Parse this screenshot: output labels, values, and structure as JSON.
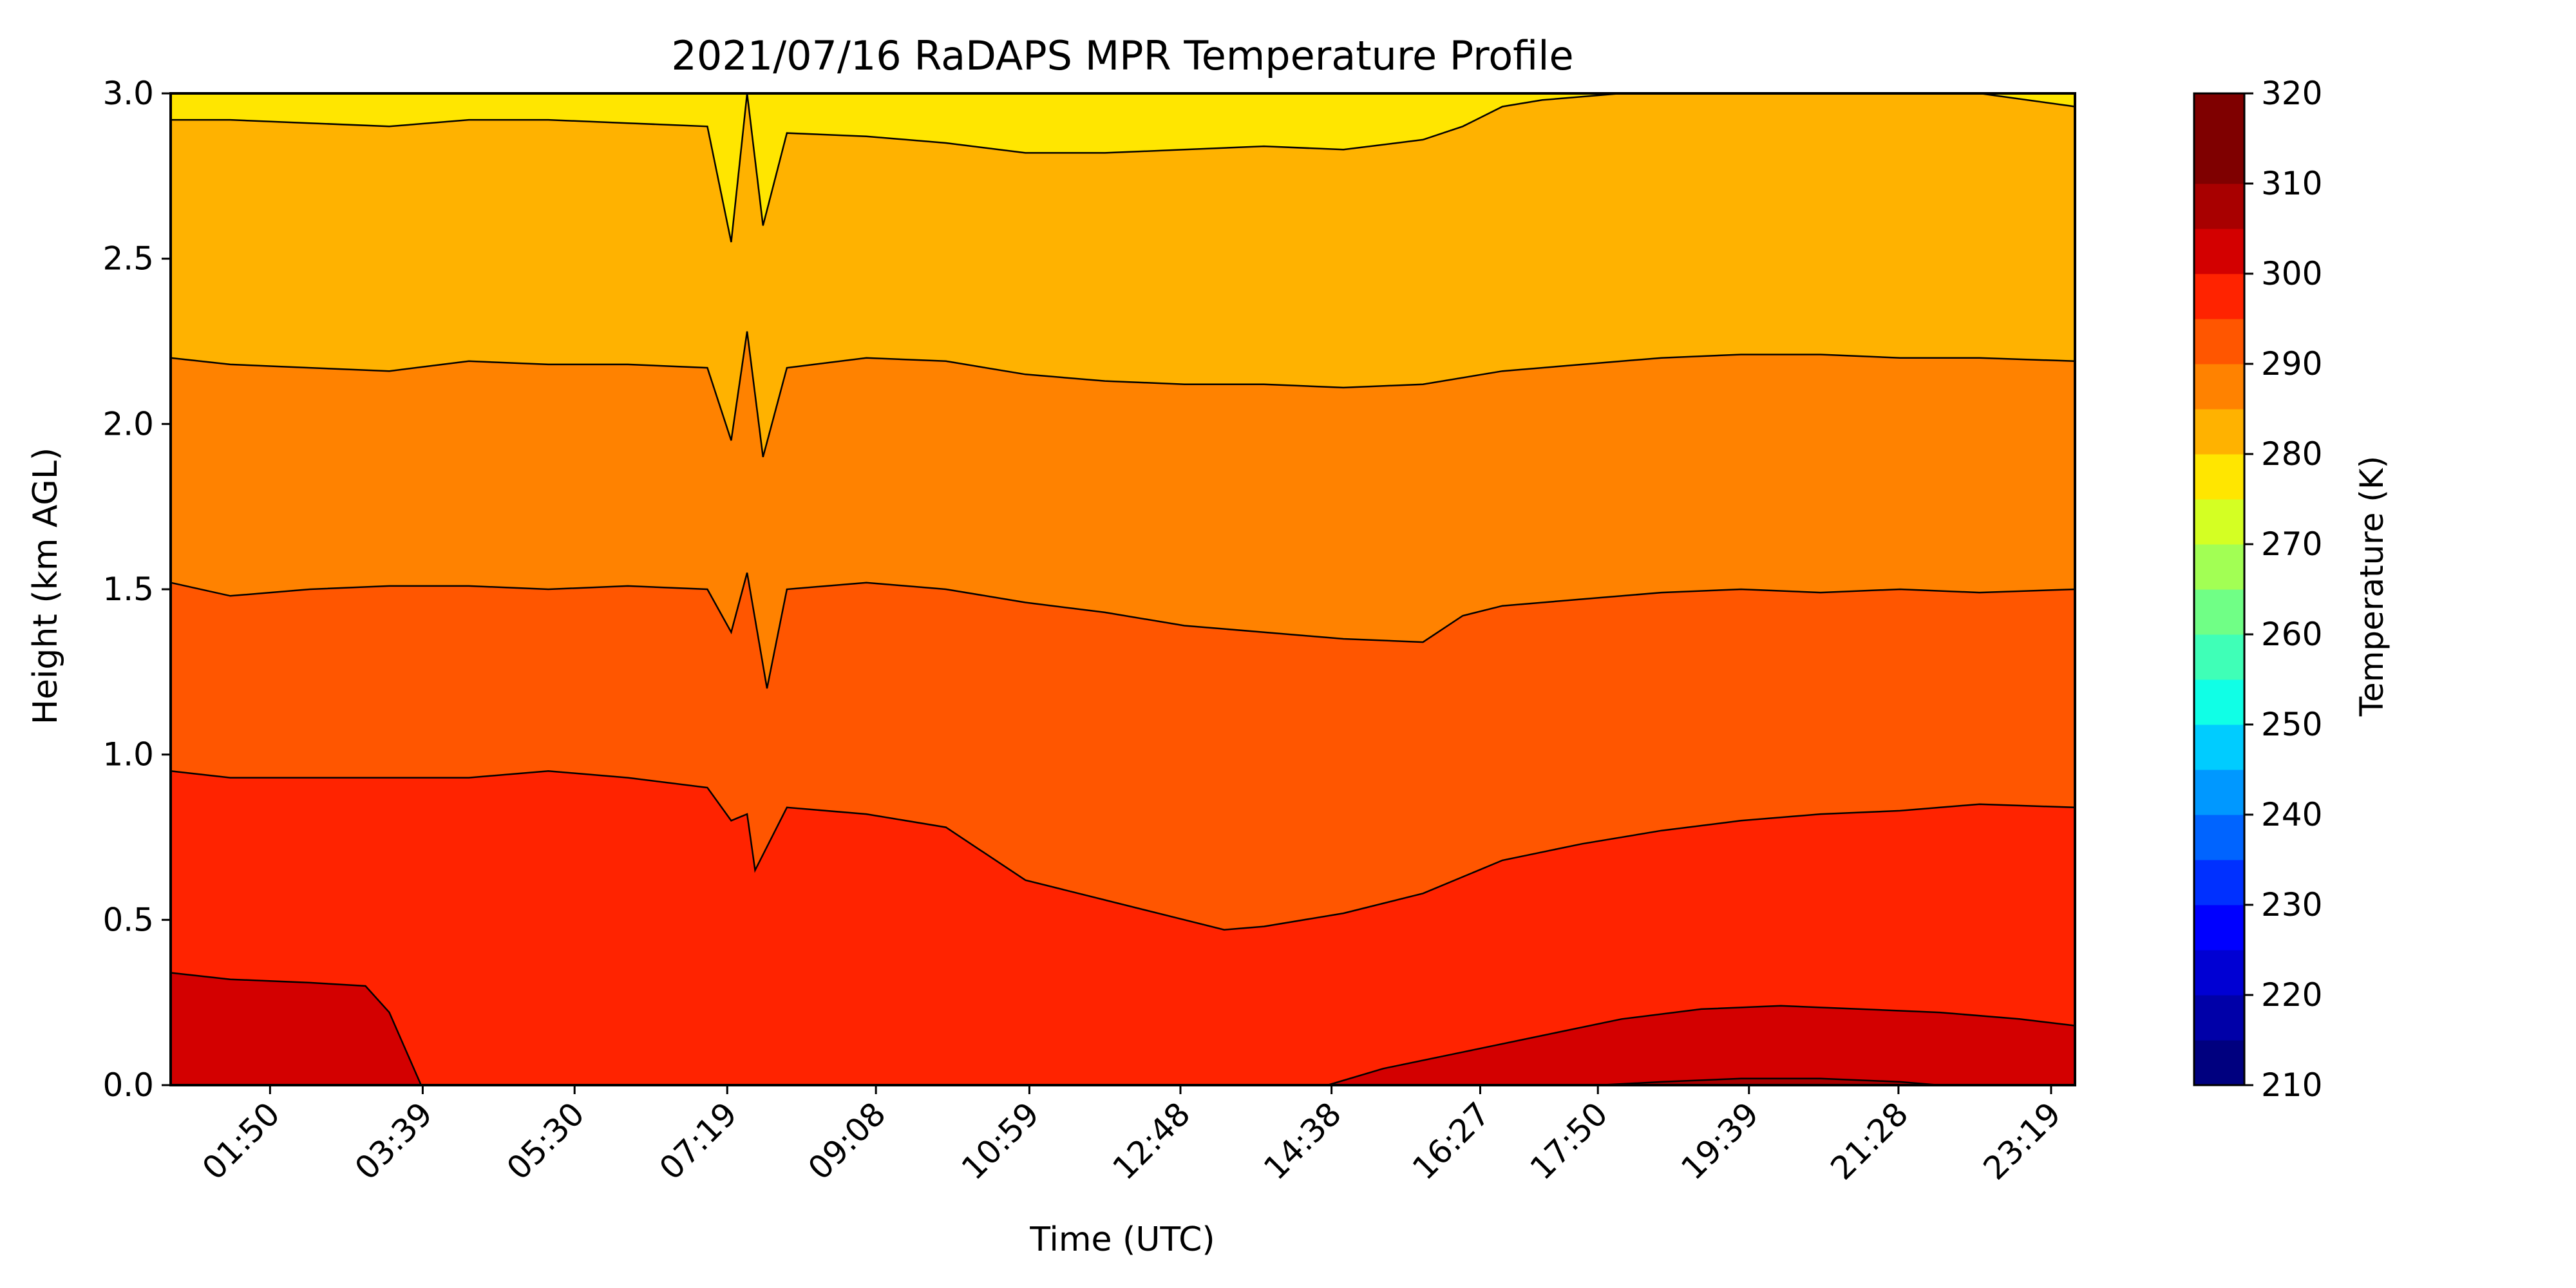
{
  "chart_data": {
    "type": "heatmap",
    "title": "2021/07/16 RaDAPS MPR Temperature Profile",
    "xlabel": "Time (UTC)",
    "ylabel": "Height (km AGL)",
    "x_unit": "hours UTC",
    "xlim": [
      0.25,
      24.2
    ],
    "ylim": [
      0,
      3.0
    ],
    "x_ticks": [
      {
        "value": 1.5,
        "label": "01:50"
      },
      {
        "value": 3.42,
        "label": "03:39"
      },
      {
        "value": 5.33,
        "label": "05:30"
      },
      {
        "value": 7.25,
        "label": "07:19"
      },
      {
        "value": 9.12,
        "label": "09:08"
      },
      {
        "value": 11.05,
        "label": "10:59"
      },
      {
        "value": 12.95,
        "label": "12:48"
      },
      {
        "value": 14.85,
        "label": "14:38"
      },
      {
        "value": 16.72,
        "label": "16:27"
      },
      {
        "value": 18.2,
        "label": "17:50"
      },
      {
        "value": 20.1,
        "label": "19:39"
      },
      {
        "value": 21.98,
        "label": "21:28"
      },
      {
        "value": 23.9,
        "label": "23:19"
      }
    ],
    "y_ticks": [
      "0.0",
      "0.5",
      "1.0",
      "1.5",
      "2.0",
      "2.5",
      "3.0"
    ],
    "colorbar": {
      "label": "Temperature (K)",
      "min": 210,
      "max": 320,
      "step": 5,
      "tick_labels": [
        "210",
        "220",
        "230",
        "240",
        "250",
        "260",
        "270",
        "280",
        "290",
        "300",
        "310",
        "320"
      ],
      "colors": [
        "#00007f",
        "#0000a8",
        "#0000d3",
        "#0000ff",
        "#0030ff",
        "#0064ff",
        "#0098ff",
        "#00ccff",
        "#10ffe6",
        "#3fffb7",
        "#70ff86",
        "#a2ff54",
        "#d4ff23",
        "#ffe600",
        "#ffb200",
        "#ff8200",
        "#ff5600",
        "#ff2300",
        "#d30000",
        "#a80000",
        "#7f0000",
        "#7f0000"
      ]
    },
    "isotherms": [
      {
        "level": 280,
        "points": [
          [
            0.25,
            2.92
          ],
          [
            1.0,
            2.92
          ],
          [
            2.0,
            2.91
          ],
          [
            3.0,
            2.9
          ],
          [
            4.0,
            2.92
          ],
          [
            5.0,
            2.92
          ],
          [
            6.0,
            2.91
          ],
          [
            7.0,
            2.9
          ],
          [
            7.3,
            2.55
          ],
          [
            7.5,
            3.0
          ],
          [
            7.7,
            2.6
          ],
          [
            8.0,
            2.88
          ],
          [
            9.0,
            2.87
          ],
          [
            10.0,
            2.85
          ],
          [
            11.0,
            2.82
          ],
          [
            12.0,
            2.82
          ],
          [
            13.0,
            2.83
          ],
          [
            14.0,
            2.84
          ],
          [
            15.0,
            2.83
          ],
          [
            16.0,
            2.86
          ],
          [
            16.5,
            2.9
          ],
          [
            17.0,
            2.96
          ],
          [
            17.5,
            2.98
          ],
          [
            18.5,
            3.0
          ],
          [
            23.0,
            3.0
          ],
          [
            24.2,
            2.96
          ]
        ]
      },
      {
        "level": 285,
        "points": [
          [
            0.25,
            2.2
          ],
          [
            1.0,
            2.18
          ],
          [
            2.0,
            2.17
          ],
          [
            3.0,
            2.16
          ],
          [
            4.0,
            2.19
          ],
          [
            5.0,
            2.18
          ],
          [
            6.0,
            2.18
          ],
          [
            7.0,
            2.17
          ],
          [
            7.3,
            1.95
          ],
          [
            7.5,
            2.28
          ],
          [
            7.7,
            1.9
          ],
          [
            8.0,
            2.17
          ],
          [
            9.0,
            2.2
          ],
          [
            10.0,
            2.19
          ],
          [
            11.0,
            2.15
          ],
          [
            12.0,
            2.13
          ],
          [
            13.0,
            2.12
          ],
          [
            14.0,
            2.12
          ],
          [
            15.0,
            2.11
          ],
          [
            16.0,
            2.12
          ],
          [
            17.0,
            2.16
          ],
          [
            18.0,
            2.18
          ],
          [
            19.0,
            2.2
          ],
          [
            20.0,
            2.21
          ],
          [
            21.0,
            2.21
          ],
          [
            22.0,
            2.2
          ],
          [
            23.0,
            2.2
          ],
          [
            24.2,
            2.19
          ]
        ]
      },
      {
        "level": 290,
        "points": [
          [
            0.25,
            1.52
          ],
          [
            1.0,
            1.48
          ],
          [
            2.0,
            1.5
          ],
          [
            3.0,
            1.51
          ],
          [
            4.0,
            1.51
          ],
          [
            5.0,
            1.5
          ],
          [
            6.0,
            1.51
          ],
          [
            7.0,
            1.5
          ],
          [
            7.3,
            1.37
          ],
          [
            7.5,
            1.55
          ],
          [
            7.75,
            1.2
          ],
          [
            8.0,
            1.5
          ],
          [
            9.0,
            1.52
          ],
          [
            10.0,
            1.5
          ],
          [
            11.0,
            1.46
          ],
          [
            12.0,
            1.43
          ],
          [
            13.0,
            1.39
          ],
          [
            14.0,
            1.37
          ],
          [
            15.0,
            1.35
          ],
          [
            16.0,
            1.34
          ],
          [
            16.5,
            1.42
          ],
          [
            17.0,
            1.45
          ],
          [
            18.0,
            1.47
          ],
          [
            19.0,
            1.49
          ],
          [
            20.0,
            1.5
          ],
          [
            21.0,
            1.49
          ],
          [
            22.0,
            1.5
          ],
          [
            23.0,
            1.49
          ],
          [
            24.2,
            1.5
          ]
        ]
      },
      {
        "level": 295,
        "points": [
          [
            0.25,
            0.95
          ],
          [
            1.0,
            0.93
          ],
          [
            2.0,
            0.93
          ],
          [
            3.0,
            0.93
          ],
          [
            4.0,
            0.93
          ],
          [
            5.0,
            0.95
          ],
          [
            6.0,
            0.93
          ],
          [
            7.0,
            0.9
          ],
          [
            7.3,
            0.8
          ],
          [
            7.5,
            0.82
          ],
          [
            7.6,
            0.65
          ],
          [
            8.0,
            0.84
          ],
          [
            9.0,
            0.82
          ],
          [
            10.0,
            0.78
          ],
          [
            11.0,
            0.62
          ],
          [
            12.0,
            0.56
          ],
          [
            13.0,
            0.5
          ],
          [
            13.5,
            0.47
          ],
          [
            14.0,
            0.48
          ],
          [
            15.0,
            0.52
          ],
          [
            16.0,
            0.58
          ],
          [
            17.0,
            0.68
          ],
          [
            18.0,
            0.73
          ],
          [
            19.0,
            0.77
          ],
          [
            20.0,
            0.8
          ],
          [
            21.0,
            0.82
          ],
          [
            22.0,
            0.83
          ],
          [
            23.0,
            0.85
          ],
          [
            24.2,
            0.84
          ]
        ]
      },
      {
        "level": 300,
        "points": [
          [
            0.25,
            0.34
          ],
          [
            1.0,
            0.32
          ],
          [
            2.0,
            0.31
          ],
          [
            2.7,
            0.3
          ],
          [
            3.0,
            0.22
          ],
          [
            3.4,
            0.0
          ]
        ]
      },
      {
        "level": 300,
        "points": [
          [
            14.8,
            0.0
          ],
          [
            15.5,
            0.05
          ],
          [
            16.5,
            0.1
          ],
          [
            17.5,
            0.15
          ],
          [
            18.5,
            0.2
          ],
          [
            19.5,
            0.23
          ],
          [
            20.5,
            0.24
          ],
          [
            21.5,
            0.23
          ],
          [
            22.5,
            0.22
          ],
          [
            23.5,
            0.2
          ],
          [
            24.2,
            0.18
          ]
        ]
      },
      {
        "level": 305,
        "points": [
          [
            18.2,
            0.0
          ],
          [
            19.0,
            0.01
          ],
          [
            20.0,
            0.02
          ],
          [
            21.0,
            0.02
          ],
          [
            22.0,
            0.01
          ],
          [
            22.5,
            0.0
          ]
        ]
      }
    ]
  }
}
